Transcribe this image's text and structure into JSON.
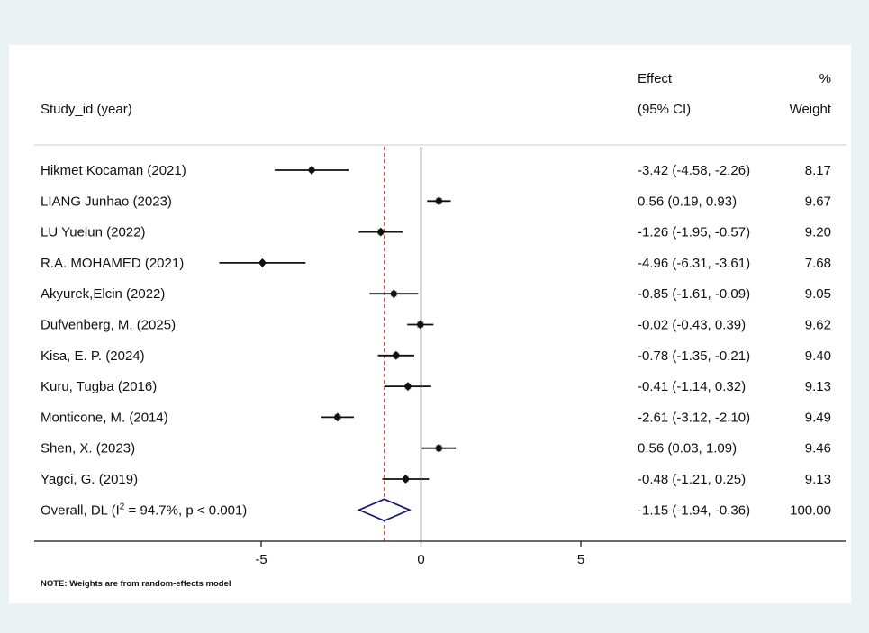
{
  "chart_data": {
    "type": "forest",
    "headers": {
      "study": "Study_id (year)",
      "effect_line1": "Effect",
      "effect_line2": "(95% CI)",
      "weight_line1": "%",
      "weight_line2": "Weight"
    },
    "xlim": [
      -7.0,
      13.0
    ],
    "xticks": [
      -5,
      0,
      5
    ],
    "xtick_labels": [
      "-5",
      "0",
      "5"
    ],
    "null_line": 0,
    "studies": [
      {
        "name": "Hikmet Kocaman (2021)",
        "effect": -3.42,
        "lower": -4.58,
        "upper": -2.26,
        "ci_label": "-3.42 (-4.58, -2.26)",
        "weight": "8.17"
      },
      {
        "name": "LIANG Junhao (2023)",
        "effect": 0.56,
        "lower": 0.19,
        "upper": 0.93,
        "ci_label": "0.56 (0.19, 0.93)",
        "weight": "9.67"
      },
      {
        "name": "LU Yuelun (2022)",
        "effect": -1.26,
        "lower": -1.95,
        "upper": -0.57,
        "ci_label": "-1.26 (-1.95, -0.57)",
        "weight": "9.20"
      },
      {
        "name": "R.A. MOHAMED (2021)",
        "effect": -4.96,
        "lower": -6.31,
        "upper": -3.61,
        "ci_label": "-4.96 (-6.31, -3.61)",
        "weight": "7.68"
      },
      {
        "name": "Akyurek,Elcin (2022)",
        "effect": -0.85,
        "lower": -1.61,
        "upper": -0.09,
        "ci_label": "-0.85 (-1.61, -0.09)",
        "weight": "9.05"
      },
      {
        "name": "Dufvenberg, M. (2025)",
        "effect": -0.02,
        "lower": -0.43,
        "upper": 0.39,
        "ci_label": "-0.02 (-0.43, 0.39)",
        "weight": "9.62"
      },
      {
        "name": "Kisa, E. P. (2024)",
        "effect": -0.78,
        "lower": -1.35,
        "upper": -0.21,
        "ci_label": "-0.78 (-1.35, -0.21)",
        "weight": "9.40"
      },
      {
        "name": "Kuru, Tugba (2016)",
        "effect": -0.41,
        "lower": -1.14,
        "upper": 0.32,
        "ci_label": "-0.41 (-1.14, 0.32)",
        "weight": "9.13"
      },
      {
        "name": "Monticone, M. (2014)",
        "effect": -2.61,
        "lower": -3.12,
        "upper": -2.1,
        "ci_label": "-2.61 (-3.12, -2.10)",
        "weight": "9.49"
      },
      {
        "name": "Shen, X. (2023)",
        "effect": 0.56,
        "lower": 0.03,
        "upper": 1.09,
        "ci_label": "0.56 (0.03, 1.09)",
        "weight": "9.46"
      },
      {
        "name": "Yagci, G. (2019)",
        "effect": -0.48,
        "lower": -1.21,
        "upper": 0.25,
        "ci_label": "-0.48 (-1.21, 0.25)",
        "weight": "9.13"
      }
    ],
    "overall": {
      "label_prefix": "Overall, DL (I",
      "label_sup": "2",
      "label_suffix": " = 94.7%, p < 0.001)",
      "effect": -1.15,
      "lower": -1.94,
      "upper": -0.36,
      "ci_label": "-1.15 (-1.94, -0.36)",
      "weight": "100.00"
    },
    "note": "NOTE: Weights are from random-effects model",
    "colors": {
      "diamond": "#1c1c7a",
      "overall_line": "#b03a3a",
      "marker": "#111111",
      "weight_box": "#9a9a9a",
      "background_outer": "#eaf2f3",
      "background_panel": "#ffffff"
    }
  }
}
